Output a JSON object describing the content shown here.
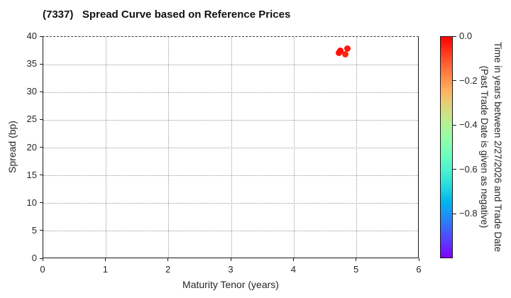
{
  "chart_data": {
    "type": "scatter",
    "title": "(7337)   Spread Curve based on Reference Prices",
    "xlabel": "Maturity Tenor (years)",
    "ylabel": "Spread (bp)",
    "xlim": [
      0,
      6
    ],
    "ylim": [
      0,
      40
    ],
    "xticks": [
      0,
      1,
      2,
      3,
      4,
      5,
      6
    ],
    "yticks": [
      0,
      5,
      10,
      15,
      20,
      25,
      30,
      35,
      40
    ],
    "grid": true,
    "grid_style": "dotted",
    "points": [
      {
        "x": 4.74,
        "y": 37.5,
        "value": -0.01
      },
      {
        "x": 4.71,
        "y": 37.1,
        "value": -0.02
      },
      {
        "x": 4.82,
        "y": 36.9,
        "value": -0.05
      },
      {
        "x": 4.85,
        "y": 37.9,
        "value": -0.03
      }
    ],
    "colorbar": {
      "colormap": "rainbow",
      "range": [
        0,
        -1
      ],
      "tick_labels": [
        "0.0",
        "−0.2",
        "−0.4",
        "−0.6",
        "−0.8"
      ],
      "tick_values": [
        0,
        -0.2,
        -0.4,
        -0.6,
        -0.8
      ],
      "label_line1": "Time in years between 2/27/2026 and Trade Date",
      "label_line2": "(Past Trade Date is given as negative)"
    },
    "colors": {
      "marker_red": "#ff0a00",
      "grid": "#9a9a9a",
      "spine": "#1a1a1a"
    }
  }
}
